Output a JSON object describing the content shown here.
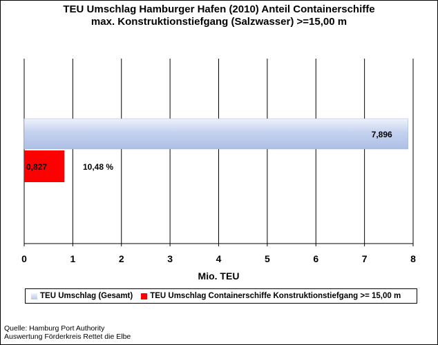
{
  "chart_data": {
    "type": "bar",
    "orientation": "horizontal",
    "title": "TEU Umschlag Hamburger Hafen (2010) Anteil Containerschiffe",
    "subtitle": "max. Konstruktionstiefgang (Salzwasser) >=15,00 m",
    "xlabel": "Mio. TEU",
    "ylabel": "",
    "xlim": [
      0,
      8
    ],
    "x_ticks": [
      "0",
      "1",
      "2",
      "3",
      "4",
      "5",
      "6",
      "7",
      "8"
    ],
    "grid": true,
    "legend_position": "bottom",
    "series": [
      {
        "name": "TEU Umschlag (Gesamt)",
        "value": 7.896,
        "label": "7,896",
        "color": "#b8c8ec"
      },
      {
        "name": "TEU Umschlag Containerschiffe Konstruktionstiefgang >= 15,00 m",
        "value": 0.827,
        "label": "0,827",
        "color": "#ff0000"
      }
    ],
    "annotation": "10,48 %"
  },
  "source": {
    "line1": "Quelle: Hamburg Port Authority",
    "line2": "Auswertung Förderkreis Rettet die Elbe"
  }
}
